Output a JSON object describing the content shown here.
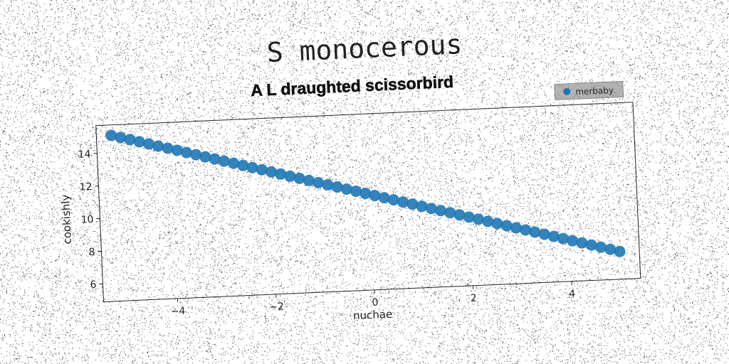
{
  "figure": {
    "suptitle": "S monocerous"
  },
  "chart_data": {
    "type": "scatter",
    "title": "A L draughted scissorbird",
    "xlabel": "nuchae",
    "ylabel": "cookishly",
    "xlim": [
      -5.5,
      5.4
    ],
    "ylim": [
      4.9,
      15.7
    ],
    "xticks": [
      -4,
      -2,
      0,
      2,
      4
    ],
    "xtick_labels": [
      "−4",
      "−2",
      "0",
      "2",
      "4"
    ],
    "yticks": [
      6,
      8,
      10,
      12,
      14
    ],
    "ytick_labels": [
      "6",
      "8",
      "10",
      "12",
      "14"
    ],
    "grid": false,
    "legend": {
      "position": "top-right",
      "entries": [
        "merbaby"
      ]
    },
    "series": [
      {
        "name": "merbaby",
        "color": "#1f77b4",
        "n_points": 55,
        "x_range": [
          -5.2,
          5.0
        ],
        "fit": {
          "slope": -0.83,
          "intercept": 10.75
        }
      }
    ]
  }
}
